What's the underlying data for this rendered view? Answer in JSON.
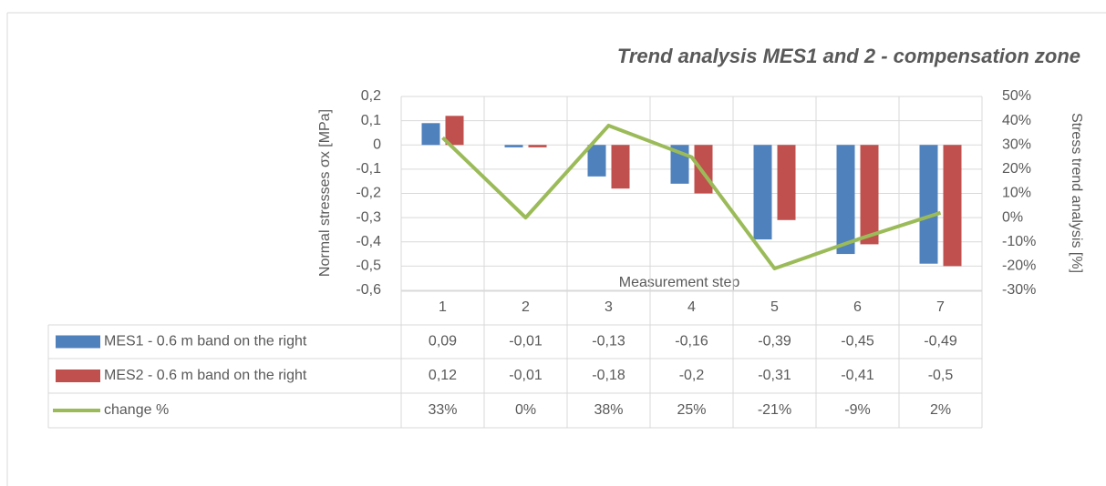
{
  "chart_data": {
    "type": "bar",
    "title": "Trend analysis MES1 and 2 - compensation zone",
    "y_label": "Normal stresses σx [MPa]",
    "y2_label": "Stress trend analysis [%]",
    "x_label": "Measurement step",
    "categories": [
      "1",
      "2",
      "3",
      "4",
      "5",
      "6",
      "7"
    ],
    "series": [
      {
        "name": "MES1 - 0.6 m band on the right",
        "type": "bar",
        "color": "#4f81bd",
        "values": [
          0.09,
          -0.01,
          -0.13,
          -0.16,
          -0.39,
          -0.45,
          -0.49
        ],
        "value_labels": [
          "0,09",
          "-0,01",
          "-0,13",
          "-0,16",
          "-0,39",
          "-0,45",
          "-0,49"
        ]
      },
      {
        "name": "MES2 - 0.6 m band on the right",
        "type": "bar",
        "color": "#c0504d",
        "values": [
          0.12,
          -0.01,
          -0.18,
          -0.2,
          -0.31,
          -0.41,
          -0.5
        ],
        "value_labels": [
          "0,12",
          "-0,01",
          "-0,18",
          "-0,2",
          "-0,31",
          "-0,41",
          "-0,5"
        ]
      },
      {
        "name": "change %",
        "type": "line",
        "axis": "y2",
        "color": "#9bbb59",
        "values": [
          33,
          0,
          38,
          25,
          -21,
          -9,
          2
        ],
        "value_labels": [
          "33%",
          "0%",
          "38%",
          "25%",
          "-21%",
          "-9%",
          "2%"
        ]
      }
    ],
    "ylim": [
      -0.6,
      0.2
    ],
    "yticks": [
      {
        "value": 0.2,
        "label": "0,2"
      },
      {
        "value": 0.1,
        "label": "0,1"
      },
      0,
      {
        "value": -0.1,
        "label": "-0,1"
      },
      {
        "value": -0.2,
        "label": "-0,2"
      },
      {
        "value": -0.3,
        "label": "-0,3"
      },
      {
        "value": -0.4,
        "label": "-0,4"
      },
      {
        "value": -0.5,
        "label": "-0,5"
      },
      {
        "value": -0.6,
        "label": "-0,6"
      }
    ],
    "y2lim": [
      -30,
      50
    ],
    "y2ticks": [
      {
        "value": 50,
        "label": "50%"
      },
      {
        "value": 40,
        "label": "40%"
      },
      {
        "value": 30,
        "label": "30%"
      },
      {
        "value": 20,
        "label": "20%"
      },
      {
        "value": 10,
        "label": "10%"
      },
      {
        "value": 0,
        "label": "0%"
      },
      {
        "value": -10,
        "label": "-10%"
      },
      {
        "value": -20,
        "label": "-20%"
      },
      {
        "value": -30,
        "label": "-30%"
      }
    ],
    "grid": true
  }
}
